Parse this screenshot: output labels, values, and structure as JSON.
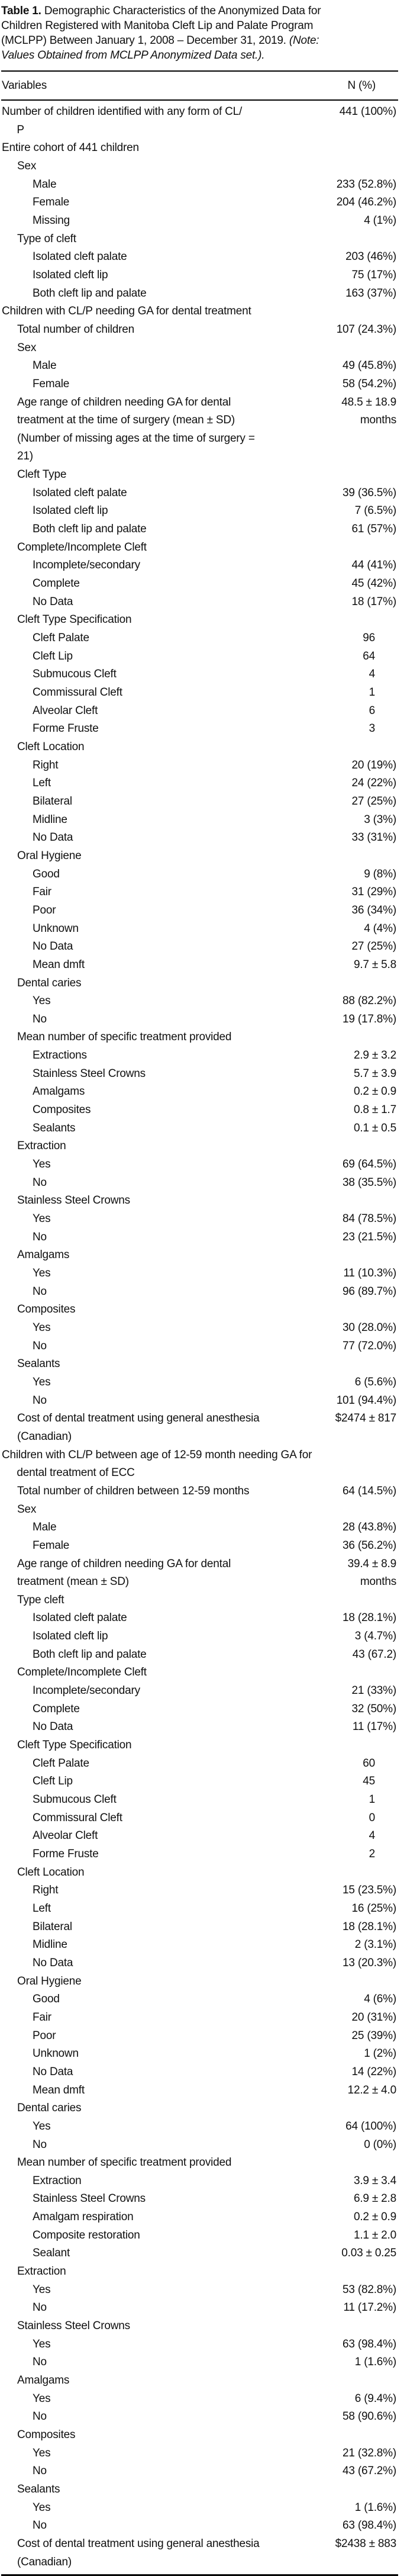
{
  "title": {
    "lines": [
      {
        "bold": "Table 1.",
        "text": " Demographic Characteristics of the Anonymized Data for"
      },
      {
        "text": "Children Registered with Manitoba Cleft Lip and Palate Program"
      },
      {
        "text": "(MCLPP) Between January 1, 2008 – December 31, 2019. ",
        "italic": "(Note:"
      },
      {
        "italic": "Values Obtained from MCLPP Anonymized Data set.)."
      }
    ]
  },
  "table": {
    "header": {
      "variables": "Variables",
      "n": "N (%)"
    },
    "rows": [
      {
        "label": "Number of children identified with any form of CL/\n     P",
        "value": "441 (100%)",
        "indent": 0
      },
      {
        "label": "Entire cohort of 441 children",
        "value": "",
        "indent": 0
      },
      {
        "label": "Sex",
        "value": "",
        "indent": 1
      },
      {
        "label": "Male",
        "value": "233 (52.8%)",
        "indent": 2
      },
      {
        "label": "Female",
        "value": "204 (46.2%)",
        "indent": 2
      },
      {
        "label": "Missing",
        "value": "4 (1%)",
        "indent": 2
      },
      {
        "label": "Type of cleft",
        "value": "",
        "indent": 1
      },
      {
        "label": "Isolated cleft palate",
        "value": "203 (46%)",
        "indent": 2
      },
      {
        "label": "Isolated cleft lip",
        "value": "75 (17%)",
        "indent": 2
      },
      {
        "label": "Both cleft lip and palate",
        "value": "163 (37%)",
        "indent": 2
      },
      {
        "label": "Children with CL/P needing GA for dental treatment",
        "value": "",
        "indent": 0
      },
      {
        "label": "Total number of children",
        "value": "107 (24.3%)",
        "indent": 1
      },
      {
        "label": "Sex",
        "value": "",
        "indent": 1
      },
      {
        "label": "Male",
        "value": "49 (45.8%)",
        "indent": 2
      },
      {
        "label": "Female",
        "value": "58 (54.2%)",
        "indent": 2
      },
      {
        "label": "Age range of children needing GA for dental\ntreatment at the time of surgery (mean ± SD)\n(Number of missing ages at the time of surgery =\n21)",
        "value": "48.5 ± 18.9\nmonths",
        "indent": 1
      },
      {
        "label": "Cleft Type",
        "value": "",
        "indent": 1
      },
      {
        "label": "Isolated cleft palate",
        "value": "39 (36.5%)",
        "indent": 2
      },
      {
        "label": "Isolated cleft lip",
        "value": "7 (6.5%)",
        "indent": 2
      },
      {
        "label": "Both cleft lip and palate",
        "value": "61 (57%)",
        "indent": 2
      },
      {
        "label": "Complete/Incomplete Cleft",
        "value": "",
        "indent": 1
      },
      {
        "label": "Incomplete/secondary",
        "value": "44 (41%)",
        "indent": 2
      },
      {
        "label": "Complete",
        "value": "45 (42%)",
        "indent": 2
      },
      {
        "label": "No Data",
        "value": "18 (17%)",
        "indent": 2
      },
      {
        "label": "Cleft Type Specification",
        "value": "",
        "indent": 1
      },
      {
        "label": "Cleft Palate",
        "value": "96",
        "indent": 2
      },
      {
        "label": "Cleft Lip",
        "value": "64",
        "indent": 2
      },
      {
        "label": "Submucous Cleft",
        "value": "4",
        "indent": 2
      },
      {
        "label": "Commissural Cleft",
        "value": "1",
        "indent": 2
      },
      {
        "label": "Alveolar Cleft",
        "value": "6",
        "indent": 2
      },
      {
        "label": "Forme Fruste",
        "value": "3",
        "indent": 2
      },
      {
        "label": "Cleft Location",
        "value": "",
        "indent": 1
      },
      {
        "label": "Right",
        "value": "20 (19%)",
        "indent": 2
      },
      {
        "label": "Left",
        "value": "24 (22%)",
        "indent": 2
      },
      {
        "label": "Bilateral",
        "value": "27 (25%)",
        "indent": 2
      },
      {
        "label": "Midline",
        "value": "3 (3%)",
        "indent": 2
      },
      {
        "label": "No Data",
        "value": "33 (31%)",
        "indent": 2
      },
      {
        "label": "Oral Hygiene",
        "value": "",
        "indent": 1
      },
      {
        "label": "Good",
        "value": "9 (8%)",
        "indent": 2
      },
      {
        "label": "Fair",
        "value": "31 (29%)",
        "indent": 2
      },
      {
        "label": "Poor",
        "value": "36 (34%)",
        "indent": 2
      },
      {
        "label": "Unknown",
        "value": "4 (4%)",
        "indent": 2
      },
      {
        "label": "No Data",
        "value": "27 (25%)",
        "indent": 2
      },
      {
        "label": "Mean dmft",
        "value": "9.7 ± 5.8",
        "indent": 2
      },
      {
        "label": "Dental caries",
        "value": "",
        "indent": 1
      },
      {
        "label": "Yes",
        "value": "88 (82.2%)",
        "indent": 2
      },
      {
        "label": "No",
        "value": "19 (17.8%)",
        "indent": 2
      },
      {
        "label": "Mean number of specific treatment provided",
        "value": "",
        "indent": 1
      },
      {
        "label": "Extractions",
        "value": "2.9 ± 3.2",
        "indent": 2
      },
      {
        "label": "Stainless Steel Crowns",
        "value": "5.7 ± 3.9",
        "indent": 2
      },
      {
        "label": "Amalgams",
        "value": "0.2 ± 0.9",
        "indent": 2
      },
      {
        "label": "Composites",
        "value": "0.8 ± 1.7",
        "indent": 2
      },
      {
        "label": "Sealants",
        "value": "0.1 ± 0.5",
        "indent": 2
      },
      {
        "label": "Extraction",
        "value": "",
        "indent": 1
      },
      {
        "label": "Yes",
        "value": "69 (64.5%)",
        "indent": 2
      },
      {
        "label": "No",
        "value": "38 (35.5%)",
        "indent": 2
      },
      {
        "label": "Stainless Steel Crowns",
        "value": "",
        "indent": 1
      },
      {
        "label": "Yes",
        "value": "84 (78.5%)",
        "indent": 2
      },
      {
        "label": "No",
        "value": "23 (21.5%)",
        "indent": 2
      },
      {
        "label": "Amalgams",
        "value": "",
        "indent": 1
      },
      {
        "label": "Yes",
        "value": "11 (10.3%)",
        "indent": 2
      },
      {
        "label": "No",
        "value": "96 (89.7%)",
        "indent": 2
      },
      {
        "label": "Composites",
        "value": "",
        "indent": 1
      },
      {
        "label": "Yes",
        "value": "30 (28.0%)",
        "indent": 2
      },
      {
        "label": "No",
        "value": "77 (72.0%)",
        "indent": 2
      },
      {
        "label": "Sealants",
        "value": "",
        "indent": 1
      },
      {
        "label": "Yes",
        "value": "6 (5.6%)",
        "indent": 2
      },
      {
        "label": "No",
        "value": "101 (94.4%)",
        "indent": 2
      },
      {
        "label": "Cost of dental treatment using general anesthesia\n(Canadian)",
        "value": "$2474 ± 817",
        "indent": 1
      },
      {
        "label": "Children with CL/P between age of 12-59 month needing GA for\n     dental treatment of ECC",
        "value": "",
        "indent": 0
      },
      {
        "label": "Total number of children between 12-59 months",
        "value": "64 (14.5%)",
        "indent": 1
      },
      {
        "label": "Sex",
        "value": "",
        "indent": 1
      },
      {
        "label": "Male",
        "value": "28 (43.8%)",
        "indent": 2
      },
      {
        "label": "Female",
        "value": "36 (56.2%)",
        "indent": 2
      },
      {
        "label": "Age range of children needing GA for dental\ntreatment (mean ± SD)",
        "value": "39.4 ± 8.9\nmonths",
        "indent": 1
      },
      {
        "label": "Type cleft",
        "value": "",
        "indent": 1
      },
      {
        "label": "Isolated cleft palate",
        "value": "18 (28.1%)",
        "indent": 2
      },
      {
        "label": "Isolated cleft lip",
        "value": "3 (4.7%)",
        "indent": 2
      },
      {
        "label": "Both cleft lip and palate",
        "value": "43 (67.2)",
        "indent": 2
      },
      {
        "label": "Complete/Incomplete Cleft",
        "value": "",
        "indent": 1
      },
      {
        "label": "Incomplete/secondary",
        "value": "21 (33%)",
        "indent": 2
      },
      {
        "label": "Complete",
        "value": "32 (50%)",
        "indent": 2
      },
      {
        "label": "No Data",
        "value": "11 (17%)",
        "indent": 2
      },
      {
        "label": "Cleft Type Specification",
        "value": "",
        "indent": 1
      },
      {
        "label": "Cleft Palate",
        "value": "60",
        "indent": 2
      },
      {
        "label": "Cleft Lip",
        "value": "45",
        "indent": 2
      },
      {
        "label": "Submucous Cleft",
        "value": "1",
        "indent": 2
      },
      {
        "label": "Commissural Cleft",
        "value": "0",
        "indent": 2
      },
      {
        "label": "Alveolar Cleft",
        "value": "4",
        "indent": 2
      },
      {
        "label": "Forme Fruste",
        "value": "2",
        "indent": 2
      },
      {
        "label": "Cleft Location",
        "value": "",
        "indent": 1
      },
      {
        "label": "Right",
        "value": "15 (23.5%)",
        "indent": 2
      },
      {
        "label": "Left",
        "value": "16 (25%)",
        "indent": 2
      },
      {
        "label": "Bilateral",
        "value": "18 (28.1%)",
        "indent": 2
      },
      {
        "label": "Midline",
        "value": "2 (3.1%)",
        "indent": 2
      },
      {
        "label": "No Data",
        "value": "13 (20.3%)",
        "indent": 2
      },
      {
        "label": "Oral Hygiene",
        "value": "",
        "indent": 1
      },
      {
        "label": "Good",
        "value": "4 (6%)",
        "indent": 2
      },
      {
        "label": "Fair",
        "value": "20 (31%)",
        "indent": 2
      },
      {
        "label": "Poor",
        "value": "25 (39%)",
        "indent": 2
      },
      {
        "label": "Unknown",
        "value": "1 (2%)",
        "indent": 2
      },
      {
        "label": "No Data",
        "value": "14 (22%)",
        "indent": 2
      },
      {
        "label": "Mean dmft",
        "value": "12.2 ± 4.0",
        "indent": 2
      },
      {
        "label": "Dental caries",
        "value": "",
        "indent": 1
      },
      {
        "label": "Yes",
        "value": "64 (100%)",
        "indent": 2
      },
      {
        "label": "No",
        "value": "0 (0%)",
        "indent": 2
      },
      {
        "label": "Mean number of specific treatment provided",
        "value": "",
        "indent": 1
      },
      {
        "label": "Extraction",
        "value": "3.9 ± 3.4",
        "indent": 2
      },
      {
        "label": "Stainless Steel Crowns",
        "value": "6.9 ± 2.8",
        "indent": 2
      },
      {
        "label": "Amalgam respiration",
        "value": "0.2 ± 0.9",
        "indent": 2
      },
      {
        "label": "Composite restoration",
        "value": "1.1 ± 2.0",
        "indent": 2
      },
      {
        "label": "Sealant",
        "value": "0.03 ± 0.25",
        "indent": 2
      },
      {
        "label": "Extraction",
        "value": "",
        "indent": 1
      },
      {
        "label": "Yes",
        "value": "53 (82.8%)",
        "indent": 2
      },
      {
        "label": "No",
        "value": "11 (17.2%)",
        "indent": 2
      },
      {
        "label": "Stainless Steel Crowns",
        "value": "",
        "indent": 1
      },
      {
        "label": "Yes",
        "value": "63 (98.4%)",
        "indent": 2
      },
      {
        "label": "No",
        "value": "1 (1.6%)",
        "indent": 2
      },
      {
        "label": "Amalgams",
        "value": "",
        "indent": 1
      },
      {
        "label": "Yes",
        "value": "6 (9.4%)",
        "indent": 2
      },
      {
        "label": "No",
        "value": "58 (90.6%)",
        "indent": 2
      },
      {
        "label": "Composites",
        "value": "",
        "indent": 1
      },
      {
        "label": "Yes",
        "value": "21 (32.8%)",
        "indent": 2
      },
      {
        "label": "No",
        "value": "43 (67.2%)",
        "indent": 2
      },
      {
        "label": "Sealants",
        "value": "",
        "indent": 1
      },
      {
        "label": "Yes",
        "value": "1 (1.6%)",
        "indent": 2
      },
      {
        "label": "No",
        "value": "63 (98.4%)",
        "indent": 2
      },
      {
        "label": "Cost of dental treatment using general anesthesia\n(Canadian)",
        "value": "$2438 ± 883",
        "indent": 1
      }
    ]
  }
}
